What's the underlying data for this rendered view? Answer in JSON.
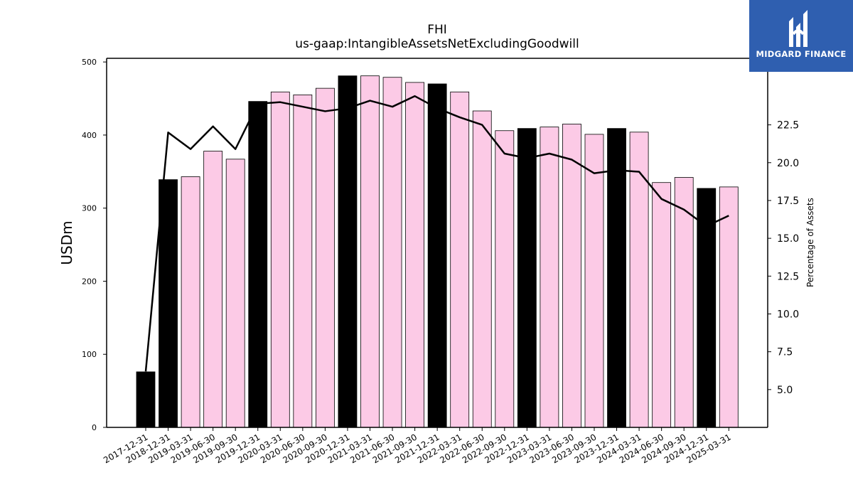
{
  "logo": {
    "text": "MIDGARD FINANCE",
    "background": "#2f5fb0"
  },
  "chart_data": {
    "type": "bar",
    "title": "FHI",
    "subtitle": "us-gaap:IntangibleAssetsNetExcludingGoodwill",
    "ylabel": "USDm",
    "y2label": "Percentage of Assets",
    "ylim": [
      0,
      505
    ],
    "y2lim": [
      2.5,
      26.9
    ],
    "yticks": [
      0,
      100,
      200,
      300,
      400,
      500
    ],
    "y2ticks": [
      5.0,
      7.5,
      10.0,
      12.5,
      15.0,
      17.5,
      20.0,
      22.5
    ],
    "grid": false,
    "categories": [
      "2017-12-31",
      "2018-12-31",
      "2019-03-31",
      "2019-06-30",
      "2019-09-30",
      "2019-12-31",
      "2020-03-31",
      "2020-06-30",
      "2020-09-30",
      "2020-12-31",
      "2021-03-31",
      "2021-06-30",
      "2021-09-30",
      "2021-12-31",
      "2022-03-31",
      "2022-06-30",
      "2022-09-30",
      "2022-12-31",
      "2023-03-31",
      "2023-06-30",
      "2023-09-30",
      "2023-12-31",
      "2024-03-31",
      "2024-06-30",
      "2024-09-30",
      "2024-12-31",
      "2025-03-31"
    ],
    "series": [
      {
        "type": "bar",
        "axis": "left",
        "values": [
          76,
          339,
          343,
          378,
          367,
          446,
          459,
          455,
          464,
          481,
          481,
          479,
          472,
          470,
          459,
          433,
          406,
          409,
          411,
          415,
          401,
          409,
          404,
          335,
          342,
          327,
          329
        ],
        "annual_color": "#000000",
        "quarter_color": "#fccae6"
      },
      {
        "type": "line",
        "axis": "right",
        "color": "#000000",
        "values": [
          6.2,
          22.0,
          20.9,
          22.4,
          20.9,
          23.9,
          24.0,
          23.7,
          23.4,
          23.6,
          24.1,
          23.7,
          24.4,
          23.6,
          23.0,
          22.5,
          20.6,
          20.3,
          20.6,
          20.2,
          19.3,
          19.5,
          19.4,
          17.6,
          16.9,
          15.8,
          16.5
        ]
      }
    ]
  }
}
